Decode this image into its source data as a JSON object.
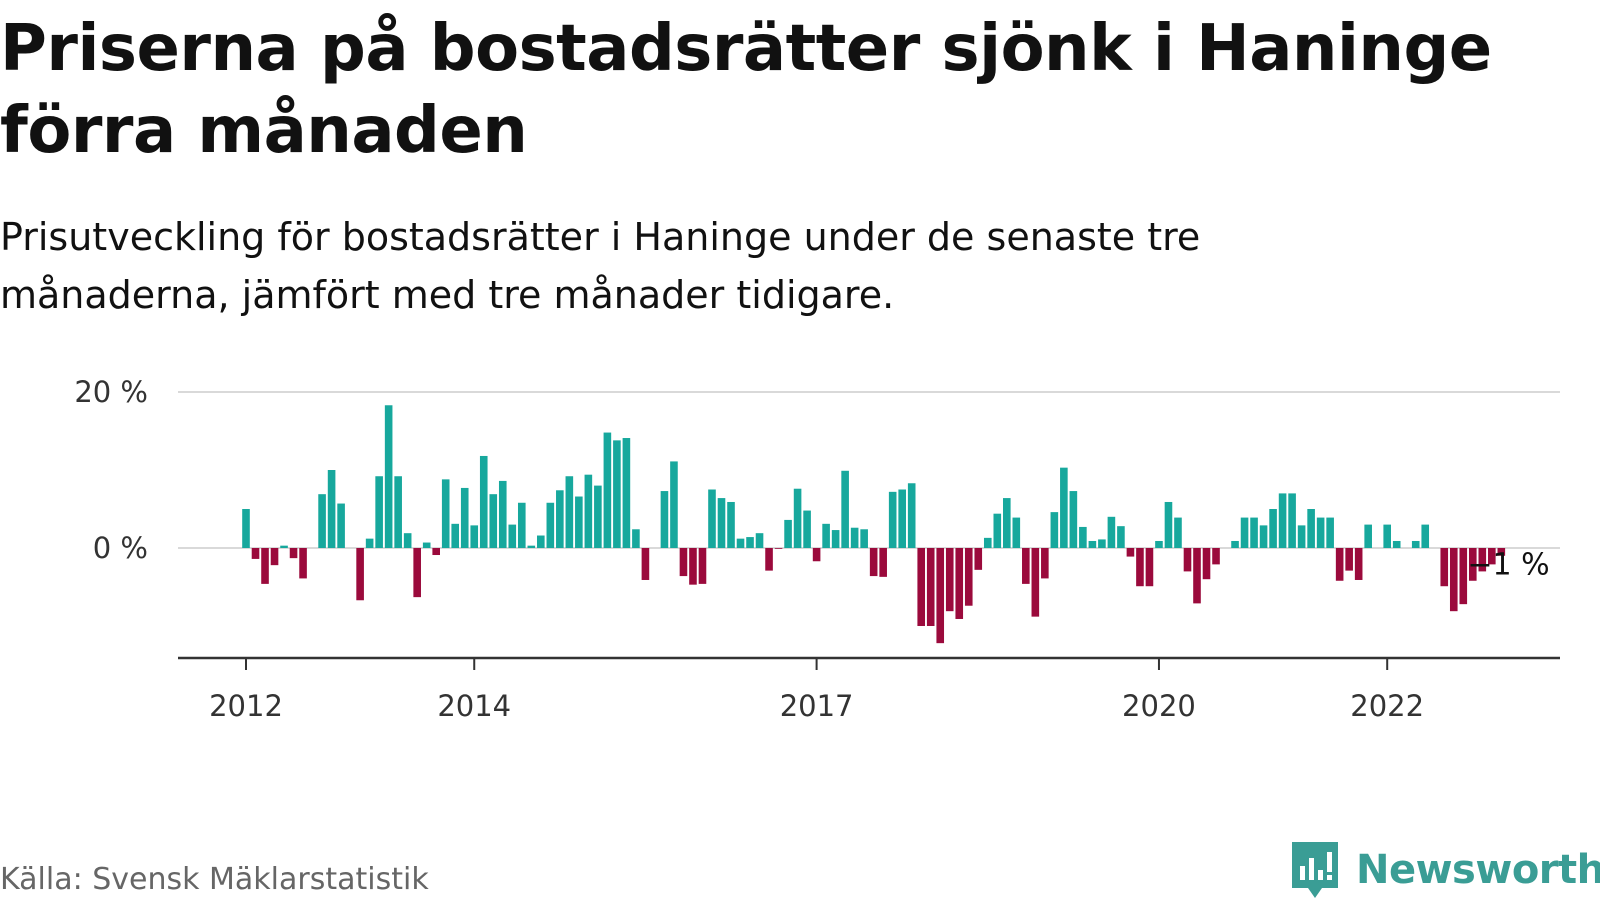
{
  "header": {
    "title": "Priserna på bostadsrätter sjönk i Haninge förra månaden",
    "subtitle": "Prisutveckling för bostadsrätter i Haninge under de senaste tre månaderna, jämfört med tre månader tidigare."
  },
  "footer": {
    "source": "Källa: Svensk Mäklarstatistik",
    "brand": "Newsworthy"
  },
  "colors": {
    "positive": "#17a89d",
    "negative": "#9b0a3c",
    "brand": "#3a9d95",
    "grid": "#d9d9d9",
    "axis": "#333333"
  },
  "chart_data": {
    "type": "bar",
    "ylabel": "",
    "xlabel": "",
    "ylim": [
      -14,
      20
    ],
    "y_ticks": [
      {
        "value": 20,
        "label": "20 %"
      },
      {
        "value": 0,
        "label": "0 %"
      }
    ],
    "x_ticks": [
      {
        "index": 0,
        "label": "2012"
      },
      {
        "index": 24,
        "label": "2014"
      },
      {
        "index": 60,
        "label": "2017"
      },
      {
        "index": 96,
        "label": "2020"
      },
      {
        "index": 120,
        "label": "2022"
      }
    ],
    "start": "2012-01",
    "end_label": "−1 %",
    "values": [
      5,
      -1.4,
      -4.6,
      -2.2,
      0.3,
      -1.3,
      -3.9,
      0,
      6.9,
      10,
      5.7,
      0,
      -6.7,
      1.2,
      9.2,
      18.3,
      9.2,
      1.9,
      -6.3,
      0.7,
      -0.9,
      8.8,
      3.1,
      7.7,
      2.9,
      11.8,
      6.9,
      8.6,
      3,
      5.8,
      0.3,
      1.6,
      5.8,
      7.4,
      9.2,
      6.6,
      9.4,
      8,
      14.8,
      13.8,
      14.1,
      2.4,
      -4.1,
      0,
      7.3,
      11.1,
      -3.6,
      -4.7,
      -4.6,
      7.5,
      6.4,
      5.9,
      1.2,
      1.4,
      1.9,
      -2.9,
      -0.1,
      3.6,
      7.6,
      4.8,
      -1.7,
      3.1,
      2.3,
      9.9,
      2.6,
      2.4,
      -3.6,
      -3.7,
      7.2,
      7.5,
      8.3,
      -10,
      -10,
      -12.2,
      -8.1,
      -9.1,
      -7.4,
      -2.8,
      1.3,
      4.4,
      6.4,
      3.9,
      -4.6,
      -8.8,
      -3.9,
      4.6,
      10.3,
      7.3,
      2.7,
      0.9,
      1.1,
      4,
      2.8,
      -1.1,
      -4.9,
      -4.9,
      0.9,
      5.9,
      3.9,
      -3,
      -7.1,
      -4,
      -2.1,
      0,
      0.9,
      3.9,
      3.9,
      2.9,
      5,
      7,
      7,
      2.9,
      5,
      3.9,
      3.9,
      -4.2,
      -2.9,
      -4.1,
      3,
      0,
      3,
      0.9,
      0,
      0.9,
      3,
      0,
      -4.9,
      -8.1,
      -7.2,
      -4.2,
      -3,
      -2.1,
      -1
    ]
  }
}
